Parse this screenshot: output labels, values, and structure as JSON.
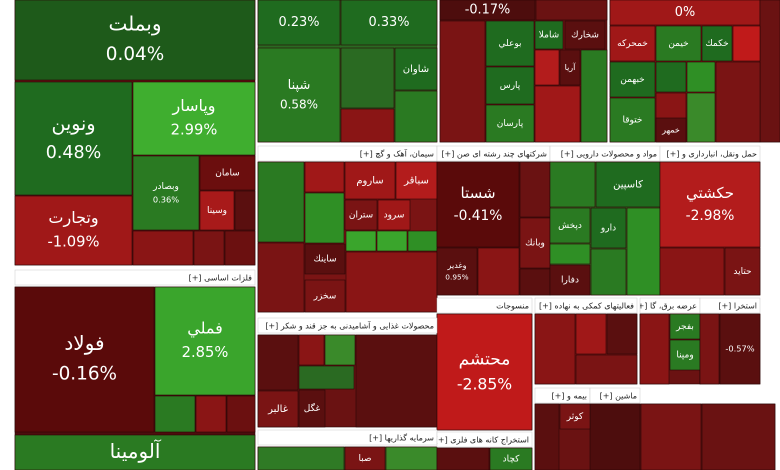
{
  "groups": [
    {
      "title": "فلزات اساسی [+]"
    },
    {
      "title": "سیمان، آهک و گچ [+]"
    },
    {
      "title": "محصولات غذایی و آشامیدنی به جز قند و شکر [+]"
    },
    {
      "title": "سرمایه گذاریها [+]"
    },
    {
      "title": "شرکتهای چند رشته ای صن [+]"
    },
    {
      "title": "مواد و محصولات دارویی [+]"
    },
    {
      "title": "حمل ونقل، انبارداری و [+]"
    },
    {
      "title": "منسوجات"
    },
    {
      "title": "استخراج کانه های فلزی [+]"
    },
    {
      "title": "فعالیتهای کمکی به نهاده [+]"
    },
    {
      "title": "عرضه برق، گا [+]"
    },
    {
      "title": "استخرا [+]"
    },
    {
      "title": "بيمه و [+]"
    },
    {
      "title": "ماشين [+]"
    }
  ],
  "tiles": [
    {
      "name": "وبملت",
      "change": "0.04%"
    },
    {
      "name": "ونوين",
      "change": "0.48%"
    },
    {
      "name": "وپاسار",
      "change": "2.99%"
    },
    {
      "name": "وتجارت",
      "change": "-1.09%"
    },
    {
      "name": "وبصادر",
      "change": "0.36%"
    },
    {
      "name": "سامان"
    },
    {
      "name": "وسينا"
    },
    {
      "name": "فولاد",
      "change": "-0.16%"
    },
    {
      "name": "فملي",
      "change": "2.85%"
    },
    {
      "name": "آلومينا"
    },
    {
      "change": "0.23%"
    },
    {
      "change": "0.33%"
    },
    {
      "name": "شپنا",
      "change": "0.58%"
    },
    {
      "name": "شاوان"
    },
    {
      "name": "ساروم"
    },
    {
      "name": "سباقر"
    },
    {
      "name": "سرود"
    },
    {
      "name": "ستران"
    },
    {
      "name": "ساينك"
    },
    {
      "name": "سخزر"
    },
    {
      "name": "غگل"
    },
    {
      "name": "غالبر"
    },
    {
      "name": "صبا"
    },
    {
      "change": "-0.17%"
    },
    {
      "name": "بوعلي"
    },
    {
      "name": "شاملا"
    },
    {
      "name": "شخارك"
    },
    {
      "name": "پارس"
    },
    {
      "name": "آريا"
    },
    {
      "name": "پارسان"
    },
    {
      "name": "شستا",
      "change": "-0.41%"
    },
    {
      "name": "وبانك"
    },
    {
      "name": "وغدير",
      "change": "0.95%"
    },
    {
      "name": "كاسپين"
    },
    {
      "name": "دپخش"
    },
    {
      "name": "دارو"
    },
    {
      "name": "دفارا"
    },
    {
      "name": "محتشم",
      "change": "-2.85%"
    },
    {
      "name": "كچاد"
    },
    {
      "change": "0%"
    },
    {
      "name": "خمحركه"
    },
    {
      "name": "خيمن"
    },
    {
      "name": "خكمك"
    },
    {
      "name": "خبهمن"
    },
    {
      "name": "ختوقا"
    },
    {
      "name": "خمهر"
    },
    {
      "name": "حكشتي",
      "change": "-2.98%"
    },
    {
      "name": "حتايد"
    },
    {
      "name": "بفجر"
    },
    {
      "name": "ومپنا"
    },
    {
      "change": "-0.57%"
    },
    {
      "name": "كوثر"
    }
  ]
}
